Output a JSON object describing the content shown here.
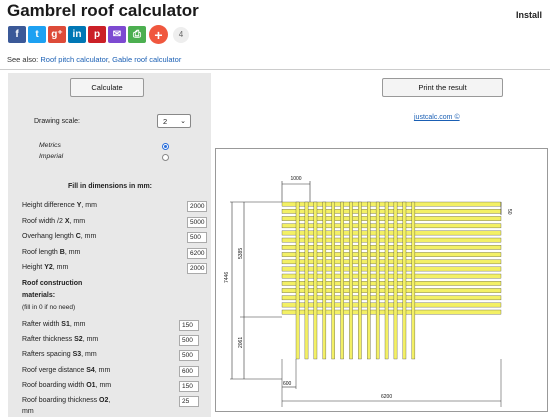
{
  "header": {
    "title": "Gambrel roof calculator",
    "install": "Install"
  },
  "share": {
    "icons": [
      {
        "name": "facebook-icon",
        "glyph": "f",
        "color": "#3b5998"
      },
      {
        "name": "twitter-icon",
        "glyph": "t",
        "color": "#1da1f2"
      },
      {
        "name": "google-plus-icon",
        "glyph": "g⁺",
        "color": "#dd4b39"
      },
      {
        "name": "linkedin-icon",
        "glyph": "in",
        "color": "#0077b5"
      },
      {
        "name": "pinterest-icon",
        "glyph": "p",
        "color": "#cb2027"
      },
      {
        "name": "email-icon",
        "glyph": "✉",
        "color": "#7d4ad1"
      },
      {
        "name": "print-icon",
        "glyph": "⎙",
        "color": "#4caf50"
      }
    ],
    "plus": "+",
    "count": "4"
  },
  "see_also": {
    "prefix": "See also:",
    "link1": "Roof pitch calculator",
    "sep": ",",
    "link2": "Gable roof calculator"
  },
  "panel": {
    "calculate_label": "Calculate",
    "scale_label": "Drawing scale:",
    "scale_value": "2",
    "units": [
      "Metrics",
      "Imperial"
    ],
    "units_selected": "Metrics",
    "fill_heading": "Fill in dimensions in mm:",
    "dimensions": [
      {
        "pre": "Height difference ",
        "key": "Y",
        "post": ", mm",
        "value": "2000"
      },
      {
        "pre": "Roof width /2 ",
        "key": "X",
        "post": ", mm",
        "value": "5000"
      },
      {
        "pre": "Overhang length ",
        "key": "C",
        "post": ", mm",
        "value": "500"
      },
      {
        "pre": "Roof length ",
        "key": "B",
        "post": ", mm",
        "value": "6200"
      },
      {
        "pre": "Height ",
        "key": "Y2",
        "post": ", mm",
        "value": "2000"
      }
    ],
    "materials_heading_1": "Roof construction",
    "materials_heading_2": "materials:",
    "materials_note": "(fill in 0 if no need)",
    "materials": [
      {
        "pre": "Rafter width ",
        "key": "S1",
        "post": ", mm",
        "value": "150"
      },
      {
        "pre": "Rafter thickness ",
        "key": "S2",
        "post": ", mm",
        "value": "500"
      },
      {
        "pre": "Rafters spacing ",
        "key": "S3",
        "post": ", mm",
        "value": "500"
      },
      {
        "pre": "Roof verge distance ",
        "key": "S4",
        "post": ", mm",
        "value": "600"
      },
      {
        "pre": "Roof boarding width ",
        "key": "O1",
        "post": ", mm",
        "value": "150"
      },
      {
        "pre": "Roof boarding thickness ",
        "key": "O2",
        "post": ",",
        "value": "25"
      }
    ],
    "last_unit": "mm"
  },
  "right": {
    "print_label": "Print the result",
    "site_link": "justcalc.com ©"
  },
  "drawing": {
    "dim_top": "1000",
    "dim_right": "50",
    "dim_total_height": "7446",
    "dim_upper_height": "5385",
    "dim_lower_height": "2061",
    "dim_bottom_left": "600",
    "dim_bottom_length": "6200",
    "colors": {
      "board": "#f3f065",
      "outline": "#333"
    }
  }
}
